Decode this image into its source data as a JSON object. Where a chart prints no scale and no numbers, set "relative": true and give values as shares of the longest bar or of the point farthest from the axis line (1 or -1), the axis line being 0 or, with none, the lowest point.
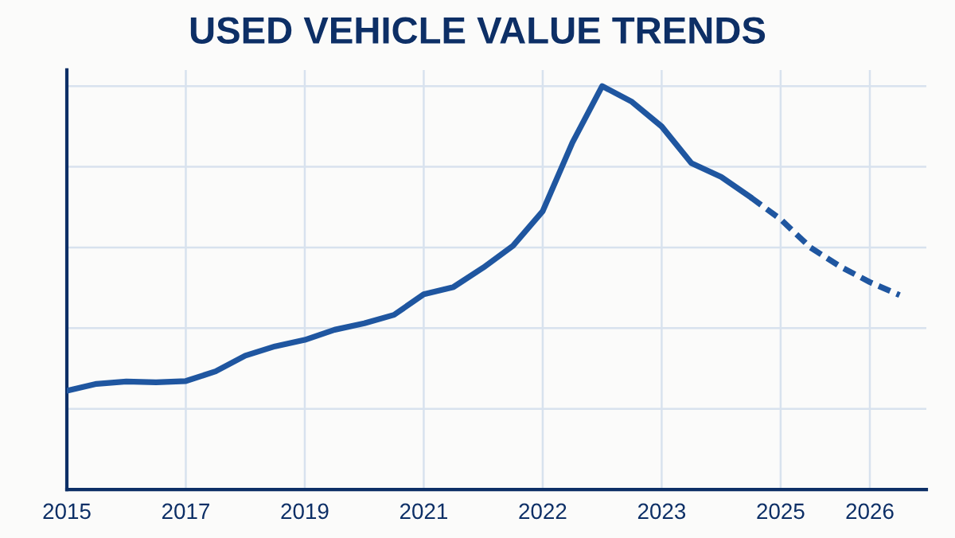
{
  "chart_data": {
    "type": "line",
    "title": "USED VEHICLE VALUE TRENDS",
    "relative": true,
    "categories": [
      "2015",
      null,
      null,
      null,
      "2017",
      null,
      null,
      null,
      "2019",
      null,
      null,
      null,
      "2021",
      null,
      null,
      null,
      "2022",
      null,
      null,
      null,
      "2023",
      null,
      null,
      null,
      "2025",
      null,
      null,
      "2026",
      null
    ],
    "grid": true,
    "series": [
      {
        "color": "#1f56a0",
        "line_style": "solid",
        "values": [
          0.245,
          0.262,
          0.268,
          0.266,
          0.269,
          0.293,
          0.332,
          0.355,
          0.371,
          0.396,
          0.412,
          0.433,
          0.484,
          0.502,
          0.55,
          0.604,
          0.69,
          0.86,
          1,
          0.961,
          0.9,
          0.809,
          0.775,
          0.724,
          null,
          null,
          null,
          null,
          null
        ]
      },
      {
        "color": "#1f56a0",
        "line_style": "dashed",
        "values": [
          null,
          null,
          null,
          null,
          null,
          null,
          null,
          null,
          null,
          null,
          null,
          null,
          null,
          null,
          null,
          null,
          null,
          null,
          null,
          null,
          null,
          null,
          null,
          0.724,
          0.67,
          0.6,
          0.553,
          0.514,
          0.482
        ]
      }
    ]
  }
}
